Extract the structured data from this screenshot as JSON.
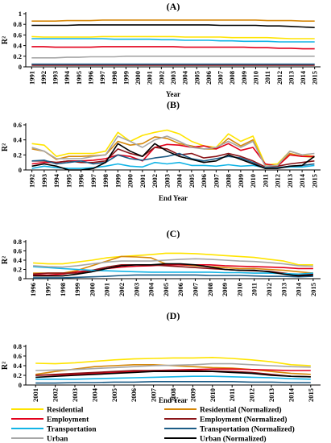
{
  "figure": {
    "colors": {
      "residential": "#ffe400",
      "residential_norm": "#d6880a",
      "employment": "#e3001b",
      "employment_norm": "#8a1418",
      "transportation": "#12b4e6",
      "transportation_norm": "#1c5c86",
      "urban": "#a7a7a7",
      "urban_norm": "#000000"
    },
    "legend": [
      {
        "key": "residential",
        "label": "Residential"
      },
      {
        "key": "residential_norm",
        "label": "Residential (Normalized)"
      },
      {
        "key": "employment",
        "label": "Employment"
      },
      {
        "key": "employment_norm",
        "label": "Employment (Normalized)"
      },
      {
        "key": "transportation",
        "label": "Transportation"
      },
      {
        "key": "transportation_norm",
        "label": "Transportation (Normalized)"
      },
      {
        "key": "urban",
        "label": "Urban"
      },
      {
        "key": "urban_norm",
        "label": "Urban (Normalized)"
      }
    ]
  },
  "chart_data": [
    {
      "type": "line",
      "title": "(A)",
      "xlabel": "Year",
      "ylabel": "R²",
      "ylim": [
        0,
        1
      ],
      "yticks": [
        "0",
        "0.2",
        "0.4",
        "0.6",
        "0.8",
        "1"
      ],
      "grid": false,
      "x": [
        "1991",
        "1992",
        "1993",
        "1994",
        "1995",
        "1996",
        "1997",
        "1998",
        "1999",
        "2000",
        "2001",
        "2002",
        "2003",
        "2004",
        "2005",
        "2006",
        "2007",
        "2008",
        "2009",
        "2010",
        "2011",
        "2012",
        "2013",
        "2014",
        "2015"
      ],
      "series": [
        {
          "key": "residential",
          "name": "Residential",
          "values": [
            0.57,
            0.56,
            0.56,
            0.56,
            0.56,
            0.56,
            0.57,
            0.57,
            0.57,
            0.57,
            0.57,
            0.57,
            0.57,
            0.56,
            0.56,
            0.56,
            0.56,
            0.55,
            0.55,
            0.55,
            0.55,
            0.54,
            0.53,
            0.53,
            0.53
          ]
        },
        {
          "key": "residential_norm",
          "name": "Residential (Normalized)",
          "values": [
            0.86,
            0.86,
            0.86,
            0.87,
            0.87,
            0.87,
            0.88,
            0.88,
            0.88,
            0.88,
            0.88,
            0.88,
            0.88,
            0.88,
            0.88,
            0.88,
            0.88,
            0.88,
            0.88,
            0.88,
            0.87,
            0.87,
            0.87,
            0.86,
            0.86
          ]
        },
        {
          "key": "employment",
          "name": "Employment",
          "values": [
            0.38,
            0.38,
            0.37,
            0.37,
            0.37,
            0.37,
            0.38,
            0.38,
            0.38,
            0.38,
            0.38,
            0.38,
            0.38,
            0.37,
            0.37,
            0.37,
            0.37,
            0.37,
            0.37,
            0.36,
            0.36,
            0.35,
            0.35,
            0.34,
            0.34
          ]
        },
        {
          "key": "employment_norm",
          "name": "Employment (Normalized)",
          "values": [
            0.03,
            0.03,
            0.03,
            0.03,
            0.03,
            0.03,
            0.03,
            0.03,
            0.03,
            0.03,
            0.03,
            0.03,
            0.03,
            0.03,
            0.03,
            0.03,
            0.03,
            0.03,
            0.03,
            0.03,
            0.03,
            0.03,
            0.03,
            0.03,
            0.03
          ]
        },
        {
          "key": "transportation",
          "name": "Transportation",
          "values": [
            0.53,
            0.53,
            0.53,
            0.53,
            0.53,
            0.53,
            0.53,
            0.52,
            0.52,
            0.52,
            0.52,
            0.51,
            0.51,
            0.5,
            0.5,
            0.5,
            0.49,
            0.49,
            0.48,
            0.48,
            0.48,
            0.47,
            0.47,
            0.47,
            0.47
          ]
        },
        {
          "key": "transportation_norm",
          "name": "Transportation (Normalized)",
          "values": [
            0.05,
            0.05,
            0.05,
            0.05,
            0.05,
            0.05,
            0.05,
            0.05,
            0.05,
            0.05,
            0.05,
            0.05,
            0.05,
            0.05,
            0.05,
            0.05,
            0.05,
            0.05,
            0.05,
            0.05,
            0.05,
            0.05,
            0.05,
            0.05,
            0.05
          ]
        },
        {
          "key": "urban",
          "name": "Urban",
          "values": [
            0.17,
            0.17,
            0.17,
            0.18,
            0.18,
            0.19,
            0.19,
            0.19,
            0.2,
            0.2,
            0.2,
            0.2,
            0.2,
            0.2,
            0.2,
            0.2,
            0.2,
            0.2,
            0.2,
            0.2,
            0.2,
            0.2,
            0.2,
            0.2,
            0.2
          ]
        },
        {
          "key": "urban_norm",
          "name": "Urban (Normalized)",
          "values": [
            0.78,
            0.78,
            0.78,
            0.78,
            0.79,
            0.79,
            0.79,
            0.79,
            0.79,
            0.79,
            0.79,
            0.79,
            0.79,
            0.79,
            0.79,
            0.79,
            0.78,
            0.78,
            0.78,
            0.78,
            0.77,
            0.77,
            0.76,
            0.75,
            0.74
          ]
        }
      ]
    },
    {
      "type": "line",
      "title": "(B)",
      "xlabel": "End Year",
      "ylabel": "R²",
      "ylim": [
        0,
        0.6
      ],
      "yticks": [
        "0",
        "0.2",
        "0.4",
        "0.6"
      ],
      "grid": false,
      "x": [
        "1992",
        "1993",
        "1994",
        "1995",
        "1996",
        "1997",
        "1998",
        "1999",
        "2000",
        "2001",
        "2002",
        "2003",
        "2004",
        "2005",
        "2006",
        "2007",
        "2008",
        "2009",
        "2010",
        "2011",
        "2012",
        "2013",
        "2014",
        "2015"
      ],
      "series": [
        {
          "key": "residential",
          "name": "Residential",
          "values": [
            0.35,
            0.33,
            0.18,
            0.22,
            0.22,
            0.22,
            0.25,
            0.5,
            0.38,
            0.46,
            0.5,
            0.53,
            0.48,
            0.38,
            0.32,
            0.3,
            0.48,
            0.38,
            0.45,
            0.07,
            0.08,
            0.25,
            0.2,
            0.18
          ]
        },
        {
          "key": "residential_norm",
          "name": "Residential (Normalized)",
          "values": [
            0.28,
            0.25,
            0.14,
            0.18,
            0.18,
            0.19,
            0.2,
            0.38,
            0.33,
            0.35,
            0.44,
            0.42,
            0.35,
            0.32,
            0.28,
            0.28,
            0.42,
            0.32,
            0.4,
            0.05,
            0.06,
            0.22,
            0.18,
            0.17
          ]
        },
        {
          "key": "employment",
          "name": "Employment",
          "values": [
            0.08,
            0.1,
            0.1,
            0.12,
            0.12,
            0.13,
            0.15,
            0.2,
            0.18,
            0.12,
            0.3,
            0.34,
            0.33,
            0.3,
            0.32,
            0.28,
            0.35,
            0.26,
            0.3,
            0.08,
            0.05,
            0.2,
            0.18,
            0.18
          ]
        },
        {
          "key": "employment_norm",
          "name": "Employment (Normalized)",
          "values": [
            0.12,
            0.12,
            0.1,
            0.12,
            0.1,
            0.1,
            0.12,
            0.28,
            0.22,
            0.18,
            0.3,
            0.28,
            0.2,
            0.22,
            0.16,
            0.18,
            0.22,
            0.18,
            0.12,
            0.04,
            0.05,
            0.08,
            0.1,
            0.12
          ]
        },
        {
          "key": "transportation",
          "name": "Transportation",
          "values": [
            0.02,
            0.05,
            0.03,
            0.02,
            0.02,
            0.03,
            0.05,
            0.08,
            0.05,
            0.04,
            0.1,
            0.08,
            0.1,
            0.06,
            0.06,
            0.05,
            0.07,
            0.05,
            0.06,
            0.03,
            0.03,
            0.04,
            0.04,
            0.06
          ]
        },
        {
          "key": "transportation_norm",
          "name": "Transportation (Normalized)",
          "values": [
            0.12,
            0.13,
            0.08,
            0.1,
            0.12,
            0.08,
            0.1,
            0.2,
            0.15,
            0.13,
            0.16,
            0.18,
            0.22,
            0.15,
            0.12,
            0.15,
            0.18,
            0.16,
            0.1,
            0.02,
            0.03,
            0.05,
            0.06,
            0.08
          ]
        },
        {
          "key": "urban",
          "name": "Urban",
          "values": [
            0.3,
            0.25,
            0.15,
            0.15,
            0.15,
            0.18,
            0.2,
            0.45,
            0.38,
            0.3,
            0.4,
            0.45,
            0.38,
            0.3,
            0.28,
            0.3,
            0.38,
            0.3,
            0.38,
            0.05,
            0.06,
            0.25,
            0.2,
            0.22
          ]
        },
        {
          "key": "urban_norm",
          "name": "Urban (Normalized)",
          "values": [
            0.05,
            0.08,
            0.05,
            0.0,
            0.0,
            0.02,
            0.1,
            0.35,
            0.25,
            0.18,
            0.35,
            0.25,
            0.18,
            0.14,
            0.1,
            0.12,
            0.2,
            0.14,
            0.08,
            0.02,
            0.02,
            0.05,
            0.06,
            0.18
          ]
        }
      ]
    },
    {
      "type": "line",
      "title": "(C)",
      "xlabel": "End Year",
      "ylabel": "R²",
      "ylim": [
        0,
        0.8
      ],
      "yticks": [
        "0",
        "0.2",
        "0.4",
        "0.6",
        "0.8"
      ],
      "grid": false,
      "x": [
        "1996",
        "1997",
        "1998",
        "1999",
        "2000",
        "2001",
        "2002",
        "2003",
        "2004",
        "2005",
        "2006",
        "2007",
        "2008",
        "2009",
        "2010",
        "2011",
        "2012",
        "2013",
        "2014",
        "2015"
      ],
      "series": [
        {
          "key": "residential",
          "name": "Residential",
          "values": [
            0.34,
            0.32,
            0.32,
            0.36,
            0.4,
            0.45,
            0.48,
            0.5,
            0.52,
            0.55,
            0.55,
            0.54,
            0.52,
            0.5,
            0.48,
            0.46,
            0.42,
            0.38,
            0.3,
            0.3
          ]
        },
        {
          "key": "residential_norm",
          "name": "Residential (Normalized)",
          "values": [
            0.12,
            0.12,
            0.12,
            0.18,
            0.28,
            0.38,
            0.48,
            0.47,
            0.45,
            0.32,
            0.3,
            0.28,
            0.26,
            0.24,
            0.22,
            0.22,
            0.2,
            0.18,
            0.15,
            0.12
          ]
        },
        {
          "key": "employment",
          "name": "Employment",
          "values": [
            0.08,
            0.08,
            0.1,
            0.15,
            0.18,
            0.22,
            0.25,
            0.27,
            0.28,
            0.3,
            0.3,
            0.3,
            0.3,
            0.28,
            0.27,
            0.26,
            0.25,
            0.24,
            0.22,
            0.22
          ]
        },
        {
          "key": "employment_norm",
          "name": "Employment (Normalized)",
          "values": [
            0.1,
            0.12,
            0.12,
            0.12,
            0.18,
            0.25,
            0.3,
            0.3,
            0.3,
            0.28,
            0.26,
            0.24,
            0.22,
            0.2,
            0.18,
            0.17,
            0.16,
            0.12,
            0.08,
            0.1
          ]
        },
        {
          "key": "transportation",
          "name": "Transportation",
          "values": [
            0.26,
            0.24,
            0.22,
            0.2,
            0.18,
            0.17,
            0.16,
            0.15,
            0.14,
            0.14,
            0.14,
            0.14,
            0.14,
            0.13,
            0.13,
            0.12,
            0.12,
            0.11,
            0.1,
            0.12
          ]
        },
        {
          "key": "transportation_norm",
          "name": "Transportation (Normalized)",
          "values": [
            0.02,
            0.02,
            0.02,
            0.03,
            0.04,
            0.05,
            0.07,
            0.08,
            0.08,
            0.08,
            0.08,
            0.08,
            0.07,
            0.07,
            0.07,
            0.06,
            0.05,
            0.05,
            0.04,
            0.05
          ]
        },
        {
          "key": "urban",
          "name": "Urban",
          "values": [
            0.28,
            0.26,
            0.25,
            0.28,
            0.32,
            0.36,
            0.38,
            0.38,
            0.38,
            0.4,
            0.42,
            0.43,
            0.42,
            0.4,
            0.38,
            0.37,
            0.35,
            0.32,
            0.28,
            0.27
          ]
        },
        {
          "key": "urban_norm",
          "name": "Urban (Normalized)",
          "values": [
            0.06,
            0.06,
            0.06,
            0.1,
            0.15,
            0.22,
            0.28,
            0.3,
            0.3,
            0.32,
            0.32,
            0.3,
            0.25,
            0.2,
            0.18,
            0.18,
            0.15,
            0.1,
            0.06,
            0.08
          ]
        }
      ]
    },
    {
      "type": "line",
      "title": "(D)",
      "xlabel": "End Year",
      "ylabel": "R²",
      "ylim": [
        0,
        0.8
      ],
      "yticks": [
        "0",
        "0.2",
        "0.4",
        "0.6",
        "0.8"
      ],
      "grid": false,
      "x": [
        "2001",
        "2002",
        "2003",
        "2004",
        "2005",
        "2006",
        "2007",
        "2008",
        "2009",
        "2010",
        "2011",
        "2012",
        "2013",
        "2014",
        "2015"
      ],
      "series": [
        {
          "key": "residential",
          "name": "Residential",
          "values": [
            0.45,
            0.44,
            0.46,
            0.49,
            0.52,
            0.54,
            0.55,
            0.56,
            0.56,
            0.57,
            0.55,
            0.52,
            0.48,
            0.42,
            0.4
          ]
        },
        {
          "key": "residential_norm",
          "name": "Residential (Normalized)",
          "values": [
            0.22,
            0.28,
            0.33,
            0.38,
            0.4,
            0.42,
            0.42,
            0.4,
            0.38,
            0.36,
            0.35,
            0.32,
            0.28,
            0.24,
            0.22
          ]
        },
        {
          "key": "employment",
          "name": "Employment",
          "values": [
            0.2,
            0.21,
            0.22,
            0.24,
            0.26,
            0.28,
            0.3,
            0.31,
            0.32,
            0.33,
            0.33,
            0.32,
            0.31,
            0.3,
            0.3
          ]
        },
        {
          "key": "employment_norm",
          "name": "Employment (Normalized)",
          "values": [
            0.2,
            0.22,
            0.24,
            0.26,
            0.28,
            0.3,
            0.3,
            0.3,
            0.3,
            0.29,
            0.28,
            0.26,
            0.22,
            0.18,
            0.17
          ]
        },
        {
          "key": "transportation",
          "name": "Transportation",
          "values": [
            0.12,
            0.12,
            0.12,
            0.13,
            0.14,
            0.15,
            0.16,
            0.17,
            0.18,
            0.18,
            0.17,
            0.16,
            0.15,
            0.13,
            0.12
          ]
        },
        {
          "key": "transportation_norm",
          "name": "Transportation (Normalized)",
          "values": [
            0.04,
            0.04,
            0.05,
            0.05,
            0.06,
            0.06,
            0.07,
            0.07,
            0.07,
            0.07,
            0.07,
            0.06,
            0.06,
            0.05,
            0.05
          ]
        },
        {
          "key": "urban",
          "name": "Urban",
          "values": [
            0.3,
            0.31,
            0.32,
            0.34,
            0.36,
            0.38,
            0.4,
            0.41,
            0.42,
            0.44,
            0.44,
            0.42,
            0.4,
            0.38,
            0.37
          ]
        },
        {
          "key": "urban_norm",
          "name": "Urban (Normalized)",
          "values": [
            0.16,
            0.18,
            0.2,
            0.22,
            0.24,
            0.26,
            0.28,
            0.28,
            0.28,
            0.28,
            0.26,
            0.24,
            0.2,
            0.18,
            0.17
          ]
        }
      ]
    }
  ]
}
